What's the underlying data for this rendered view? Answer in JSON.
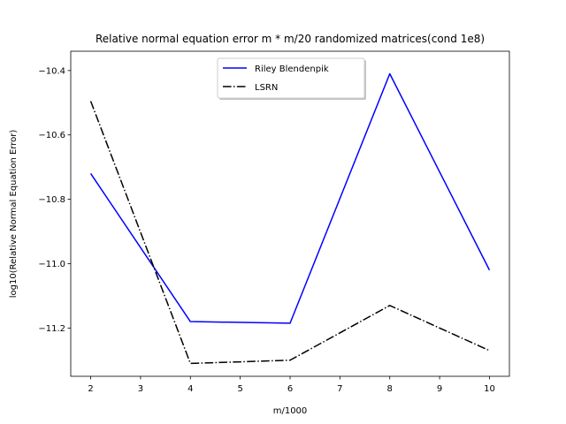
{
  "chart_data": {
    "type": "line",
    "title": "Relative normal equation error m * m/20 randomized matrices(cond 1e8)",
    "xlabel": "m/1000",
    "ylabel": "log10(Relative Normal Equation Error)",
    "x": [
      2,
      4,
      6,
      8,
      10
    ],
    "xlim": [
      1.6,
      10.4
    ],
    "ylim": [
      -11.35,
      -10.34
    ],
    "xticks": [
      2,
      3,
      4,
      5,
      6,
      7,
      8,
      9,
      10
    ],
    "yticks": [
      -11.2,
      -11.0,
      -10.8,
      -10.6,
      -10.4
    ],
    "ytick_labels": [
      "−11.2",
      "−11.0",
      "−10.8",
      "−10.6",
      "−10.4"
    ],
    "grid": false,
    "legend_position": "upper center",
    "series": [
      {
        "name": "Riley Blendenpik",
        "values": [
          -10.72,
          -11.18,
          -11.185,
          -10.41,
          -11.02
        ],
        "color": "#0000ff",
        "linestyle": "solid"
      },
      {
        "name": "LSRN",
        "values": [
          -10.495,
          -11.31,
          -11.3,
          -11.13,
          -11.27
        ],
        "color": "#000000",
        "linestyle": "dashdot"
      }
    ]
  }
}
